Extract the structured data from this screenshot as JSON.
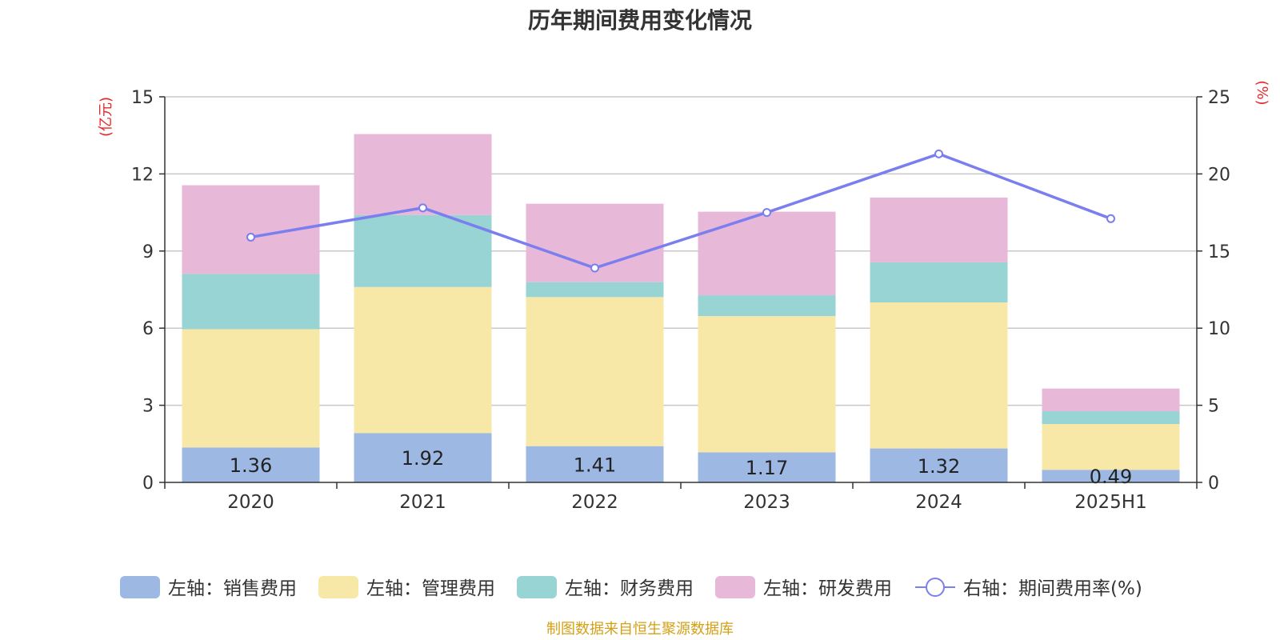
{
  "chart_data": {
    "type": "bar",
    "stacked": true,
    "title": "历年期间费用变化情况",
    "categories": [
      "2020",
      "2021",
      "2022",
      "2023",
      "2024",
      "2025H1"
    ],
    "y_left": {
      "unit_label": "(亿元)",
      "ticks": [
        0,
        3,
        6,
        9,
        12,
        15
      ],
      "ylim": [
        0,
        15
      ]
    },
    "y_right": {
      "unit_label": "(%)",
      "ticks": [
        0,
        5,
        10,
        15,
        20,
        25
      ],
      "ylim": [
        0,
        25
      ]
    },
    "series": [
      {
        "name": "左轴：销售费用",
        "axis": "left",
        "color": "#9db8e2",
        "values": [
          1.36,
          1.92,
          1.41,
          1.17,
          1.32,
          0.49
        ],
        "labels": [
          "1.36",
          "1.92",
          "1.41",
          "1.17",
          "1.32",
          "0.49"
        ]
      },
      {
        "name": "左轴：管理费用",
        "axis": "left",
        "color": "#f8e8a8",
        "values": [
          4.6,
          5.68,
          5.8,
          5.3,
          5.68,
          1.78
        ]
      },
      {
        "name": "左轴：财务费用",
        "axis": "left",
        "color": "#98d4d4",
        "values": [
          2.15,
          2.8,
          0.58,
          0.81,
          1.56,
          0.5
        ]
      },
      {
        "name": "左轴：研发费用",
        "axis": "left",
        "color": "#e8b8d8",
        "values": [
          3.45,
          3.15,
          3.05,
          3.25,
          2.52,
          0.88
        ]
      }
    ],
    "line_series": {
      "name": "右轴：期间费用率(%)",
      "axis": "right",
      "color": "#7a7eee",
      "values": [
        15.9,
        17.8,
        13.9,
        17.5,
        21.3,
        17.1
      ]
    },
    "grid": true,
    "legend_position": "bottom"
  },
  "source": "制图数据来自恒生聚源数据库"
}
